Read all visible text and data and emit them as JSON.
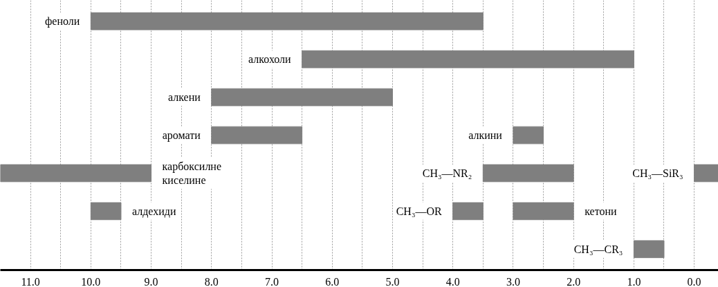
{
  "chart_data": {
    "type": "bar",
    "orientation": "horizontal",
    "categories": [
      null,
      null,
      null,
      null,
      null,
      null,
      null
    ],
    "xlim": [
      11.5,
      -0.4
    ],
    "xticks": [
      {
        "value": 11,
        "label": "11.0"
      },
      {
        "value": 10.5,
        "label": null
      },
      {
        "value": 10,
        "label": "10.0"
      },
      {
        "value": 9.5,
        "label": null
      },
      {
        "value": 9,
        "label": "9.0"
      },
      {
        "value": 8.5,
        "label": null
      },
      {
        "value": 8,
        "label": "8.0"
      },
      {
        "value": 7.5,
        "label": null
      },
      {
        "value": 7,
        "label": "7.0"
      },
      {
        "value": 6.5,
        "label": null
      },
      {
        "value": 6,
        "label": "6.0"
      },
      {
        "value": 5.5,
        "label": null
      },
      {
        "value": 5,
        "label": "5.0"
      },
      {
        "value": 4.5,
        "label": null
      },
      {
        "value": 4,
        "label": "4.0"
      },
      {
        "value": 3.5,
        "label": null
      },
      {
        "value": 3,
        "label": "3.0"
      },
      {
        "value": 2.5,
        "label": null
      },
      {
        "value": 2,
        "label": "2.0"
      },
      {
        "value": 1.5,
        "label": null
      },
      {
        "value": 1,
        "label": "1.0"
      },
      {
        "value": 0.5,
        "label": null
      },
      {
        "value": 0,
        "label": "0.0"
      }
    ],
    "grid": "x",
    "series": [
      {
        "name": "феноли",
        "color": "#7f7f7f",
        "values": [
          6.5,
          null,
          null,
          null,
          null,
          null,
          null
        ],
        "base": [
          3.5,
          null,
          null,
          null,
          null,
          null,
          null
        ]
      },
      {
        "name": "алкохоли",
        "color": "#7f7f7f",
        "values": [
          null,
          5.5,
          null,
          null,
          null,
          null,
          null
        ],
        "base": [
          null,
          1.0,
          null,
          null,
          null,
          null,
          null
        ]
      },
      {
        "name": "алкени",
        "color": "#7f7f7f",
        "values": [
          null,
          null,
          3.0,
          null,
          null,
          null,
          null
        ],
        "base": [
          null,
          null,
          5.0,
          null,
          null,
          null,
          null
        ]
      },
      {
        "name": "аромати",
        "color": "#7f7f7f",
        "values": [
          null,
          null,
          null,
          1.5,
          null,
          null,
          null
        ],
        "base": [
          null,
          null,
          null,
          6.5,
          null,
          null,
          null
        ]
      },
      {
        "name": "алкини",
        "color": "#7f7f7f",
        "values": [
          null,
          null,
          null,
          0.5,
          null,
          null,
          null
        ],
        "base": [
          null,
          null,
          null,
          2.5,
          null,
          null,
          null
        ]
      },
      {
        "name": "карбоксилне киселине",
        "color": "#7f7f7f",
        "values": [
          null,
          null,
          null,
          null,
          2.5,
          null,
          null
        ],
        "base": [
          null,
          null,
          null,
          null,
          9.0,
          null,
          null
        ]
      },
      {
        "name": "CH₃—NR₂",
        "color": "#7f7f7f",
        "values": [
          null,
          null,
          null,
          null,
          1.5,
          null,
          null
        ],
        "base": [
          null,
          null,
          null,
          null,
          2.0,
          null,
          null
        ]
      },
      {
        "name": "CH₃—SiR₃",
        "color": "#7f7f7f",
        "values": [
          null,
          null,
          null,
          null,
          0.4,
          null,
          null
        ],
        "base": [
          null,
          null,
          null,
          null,
          -0.4,
          null,
          null
        ]
      },
      {
        "name": "алдехиди",
        "color": "#7f7f7f",
        "values": [
          null,
          null,
          null,
          null,
          null,
          0.5,
          null
        ],
        "base": [
          null,
          null,
          null,
          null,
          null,
          9.5,
          null
        ]
      },
      {
        "name": "CH₃—OR",
        "color": "#7f7f7f",
        "values": [
          null,
          null,
          null,
          null,
          null,
          0.5,
          null
        ],
        "base": [
          null,
          null,
          null,
          null,
          null,
          3.5,
          null
        ]
      },
      {
        "name": "кетони",
        "color": "#7f7f7f",
        "values": [
          null,
          null,
          null,
          null,
          null,
          1.0,
          null
        ],
        "base": [
          null,
          null,
          null,
          null,
          null,
          2.0,
          null
        ]
      },
      {
        "name": "CH₃—CR₃",
        "color": "#7f7f7f",
        "values": [
          null,
          null,
          null,
          null,
          null,
          null,
          0.5
        ],
        "base": [
          null,
          null,
          null,
          null,
          null,
          null,
          0.5
        ]
      }
    ]
  }
}
